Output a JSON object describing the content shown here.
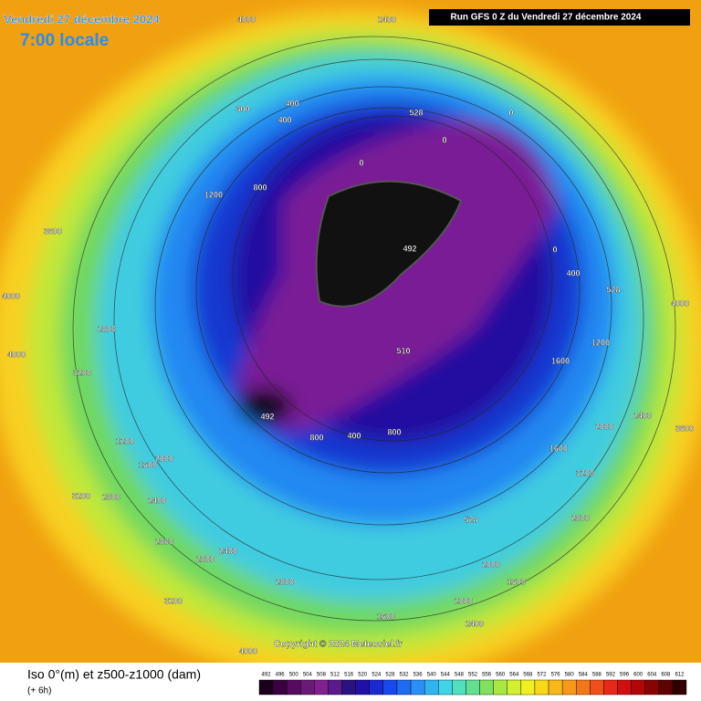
{
  "header": {
    "date": "Vendredi 27 décembre 2024",
    "time": "7:00 locale",
    "run": "Run GFS 0 Z du Vendredi 27 décembre 2024"
  },
  "footer": {
    "title": "Iso 0°(m) et z500-z1000 (dam)",
    "step": "(+ 6h)",
    "copyright": "Copyright © 2024 Meteociel.fr"
  },
  "legend": {
    "labels": [
      492,
      496,
      500,
      504,
      508,
      512,
      516,
      520,
      524,
      528,
      532,
      536,
      540,
      544,
      548,
      552,
      556,
      560,
      564,
      568,
      572,
      576,
      580,
      584,
      588,
      592,
      596,
      600,
      604,
      608,
      612
    ],
    "colors": [
      "#1a001a",
      "#3a0040",
      "#560a60",
      "#6a1a78",
      "#80208c",
      "#5a1a8c",
      "#2a1280",
      "#2010a8",
      "#1a2ad0",
      "#1848f0",
      "#1e6cf4",
      "#2890f8",
      "#30b4f0",
      "#40d4e8",
      "#50e0c0",
      "#60e090",
      "#80e060",
      "#a8e840",
      "#d0f030",
      "#f0f020",
      "#f8d818",
      "#f8b818",
      "#f89818",
      "#f07818",
      "#f05018",
      "#e82818",
      "#d01010",
      "#b00808",
      "#880404",
      "#600202",
      "#300000"
    ]
  },
  "map": {
    "labels": [
      "4000",
      "2400",
      "400",
      "300",
      "400",
      "528",
      "0",
      "0",
      "0",
      "1200",
      "800",
      "492",
      "510",
      "492",
      "800",
      "400",
      "800",
      "1200",
      "2000",
      "1600",
      "3200",
      "2800",
      "2400",
      "2800",
      "2400",
      "2800",
      "2800",
      "3200",
      "4000",
      "1600",
      "2000",
      "1600",
      "2400",
      "3200",
      "2800",
      "528",
      "2000",
      "2400",
      "3600",
      "4000",
      "3600",
      "4000",
      "2800",
      "3200",
      "1600",
      "1200",
      "0",
      "528",
      "4000",
      "400",
      "1600",
      "2000"
    ]
  }
}
